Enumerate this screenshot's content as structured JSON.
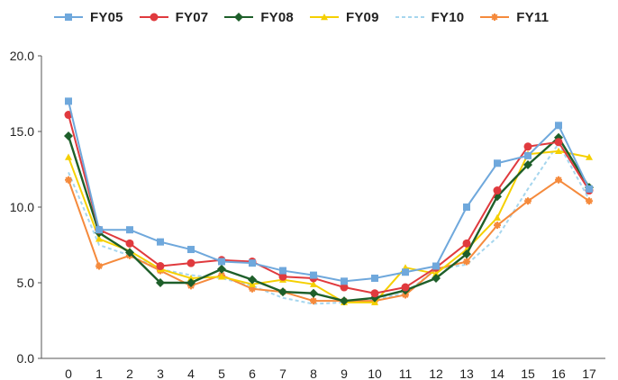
{
  "chart_data": {
    "type": "line",
    "x": [
      0,
      1,
      2,
      3,
      4,
      5,
      6,
      7,
      8,
      9,
      10,
      11,
      12,
      13,
      14,
      15,
      16,
      17
    ],
    "xticks": [
      "0",
      "1",
      "2",
      "3",
      "4",
      "5",
      "6",
      "7",
      "8",
      "9",
      "10",
      "11",
      "12",
      "13",
      "14",
      "15",
      "16",
      "17"
    ],
    "yticks": [
      "0.0",
      "5.0",
      "10.0",
      "15.0",
      "20.0"
    ],
    "ylim": [
      0,
      20
    ],
    "grid": false,
    "legend_position": "top",
    "series": [
      {
        "name": "FY05",
        "color": "#6fa8dc",
        "marker": "square",
        "values": [
          17.0,
          8.5,
          8.5,
          7.7,
          7.2,
          6.4,
          6.3,
          5.8,
          5.5,
          5.1,
          5.3,
          5.7,
          6.1,
          10.0,
          12.9,
          13.4,
          15.4,
          11.2
        ]
      },
      {
        "name": "FY07",
        "color": "#e03a3e",
        "marker": "circle",
        "values": [
          16.1,
          8.5,
          7.6,
          6.1,
          6.3,
          6.5,
          6.4,
          5.4,
          5.3,
          4.7,
          4.3,
          4.7,
          6.0,
          7.6,
          11.1,
          14.0,
          14.3,
          11.1
        ]
      },
      {
        "name": "FY08",
        "color": "#1e5f2a",
        "marker": "diamond",
        "values": [
          14.7,
          8.3,
          7.0,
          5.0,
          5.0,
          5.9,
          5.2,
          4.4,
          4.3,
          3.8,
          4.0,
          4.5,
          5.3,
          6.9,
          10.7,
          12.8,
          14.6,
          11.3
        ]
      },
      {
        "name": "FY09",
        "color": "#f5d000",
        "marker": "triangle",
        "values": [
          13.3,
          7.9,
          7.1,
          5.9,
          5.3,
          5.4,
          4.9,
          5.2,
          4.9,
          3.7,
          3.7,
          6.0,
          5.6,
          7.2,
          9.3,
          13.5,
          13.7,
          13.3
        ]
      },
      {
        "name": "FY10",
        "color": "#a6d6ee",
        "marker": "none",
        "dash": true,
        "values": [
          12.3,
          7.5,
          6.8,
          5.9,
          5.5,
          5.3,
          4.8,
          4.0,
          3.6,
          3.7,
          3.9,
          4.3,
          5.9,
          6.2,
          8.0,
          11.2,
          14.2,
          10.5
        ]
      },
      {
        "name": "FY11",
        "color": "#f58a3c",
        "marker": "star",
        "values": [
          11.8,
          6.1,
          6.8,
          5.8,
          4.8,
          5.5,
          4.6,
          4.4,
          3.8,
          3.8,
          3.8,
          4.2,
          5.9,
          6.4,
          8.8,
          10.4,
          11.8,
          10.4
        ]
      }
    ]
  }
}
